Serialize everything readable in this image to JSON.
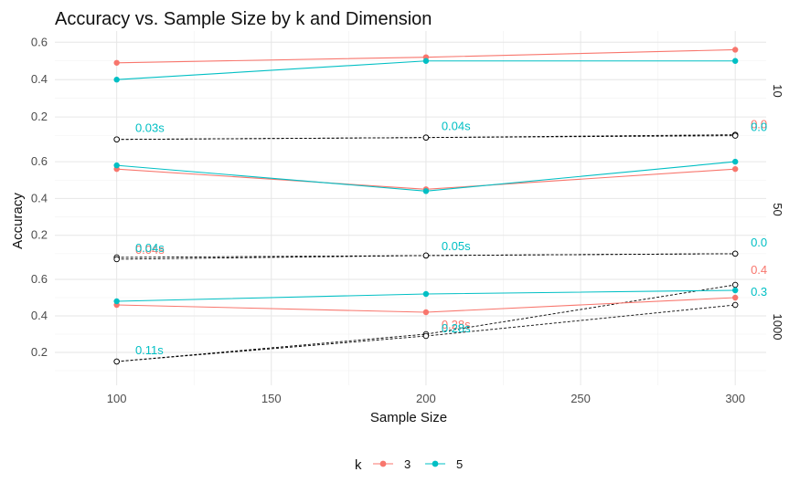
{
  "chart_data": {
    "type": "line",
    "title": "Accuracy vs. Sample Size by k and Dimension",
    "xlabel": "Sample Size",
    "ylabel": "Accuracy",
    "x": [
      100,
      200,
      300
    ],
    "xlim": [
      80,
      310
    ],
    "x_ticks": [
      "100",
      "150",
      "200",
      "250",
      "300"
    ],
    "y_ticks": [
      "0.2",
      "0.4",
      "0.6"
    ],
    "grid": true,
    "legend": {
      "title": "k",
      "position": "bottom",
      "entries": [
        "3",
        "5"
      ]
    },
    "colors": {
      "3": "#F8766D",
      "5": "#00BFC4",
      "time": "#000000"
    },
    "panels": [
      {
        "strip_label": "10",
        "ylim": [
          0.02,
          0.66
        ],
        "series": [
          {
            "name": "3",
            "values": [
              0.49,
              0.52,
              0.56
            ]
          },
          {
            "name": "5",
            "values": [
              0.4,
              0.5,
              0.5
            ]
          }
        ],
        "time_lines": [
          [
            0.08,
            0.09,
            0.105
          ],
          [
            0.08,
            0.09,
            0.1
          ]
        ],
        "annotations": [
          {
            "text": "0.03s",
            "x": 106,
            "y": 0.12,
            "series": "5"
          },
          {
            "text": "0.04s",
            "x": 205,
            "y": 0.13,
            "series": "5"
          },
          {
            "text": "0.0",
            "x": 305,
            "y": 0.14,
            "series": "3"
          },
          {
            "text": "0.0",
            "x": 305,
            "y": 0.125,
            "series": "5"
          }
        ]
      },
      {
        "strip_label": "50",
        "ylim": [
          0.02,
          0.66
        ],
        "series": [
          {
            "name": "3",
            "values": [
              0.56,
              0.45,
              0.56
            ]
          },
          {
            "name": "5",
            "values": [
              0.58,
              0.44,
              0.6
            ]
          }
        ],
        "time_lines": [
          [
            0.08,
            0.09,
            0.1
          ],
          [
            0.07,
            0.09,
            0.1
          ]
        ],
        "annotations": [
          {
            "text": "0.04s",
            "x": 106,
            "y": 0.1,
            "series": "3"
          },
          {
            "text": "0.04s",
            "x": 106,
            "y": 0.11,
            "series": "5"
          },
          {
            "text": "0.05s",
            "x": 205,
            "y": 0.12,
            "series": "5"
          },
          {
            "text": "0.0",
            "x": 305,
            "y": 0.14,
            "series": "5"
          }
        ]
      },
      {
        "strip_label": "1000",
        "ylim": [
          0.02,
          0.66
        ],
        "series": [
          {
            "name": "3",
            "values": [
              0.46,
              0.42,
              0.5
            ]
          },
          {
            "name": "5",
            "values": [
              0.48,
              0.52,
              0.54
            ]
          }
        ],
        "time_lines": [
          [
            0.15,
            0.3,
            0.57
          ],
          [
            0.15,
            0.29,
            0.46
          ]
        ],
        "annotations": [
          {
            "text": "0.11s",
            "x": 106,
            "y": 0.19,
            "series": "5"
          },
          {
            "text": "0.28s",
            "x": 205,
            "y": 0.33,
            "series": "3"
          },
          {
            "text": "0.28s",
            "x": 205,
            "y": 0.31,
            "series": "5"
          },
          {
            "text": "0.4",
            "x": 305,
            "y": 0.63,
            "series": "3"
          },
          {
            "text": "0.3",
            "x": 305,
            "y": 0.51,
            "series": "5"
          }
        ]
      }
    ]
  }
}
